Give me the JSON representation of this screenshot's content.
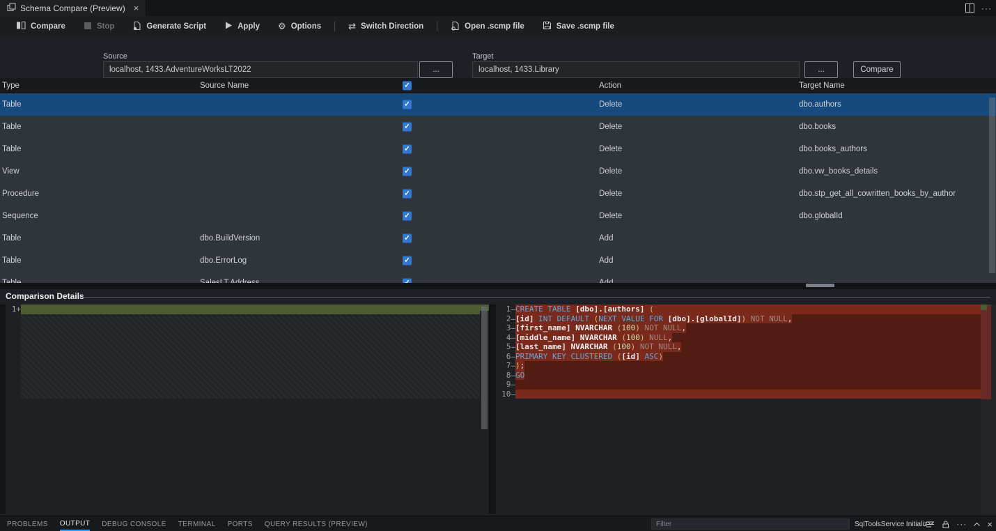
{
  "window": {
    "tab": {
      "title": "Schema Compare (Preview)",
      "close_icon": "×"
    },
    "more_icon": "···"
  },
  "toolbar": {
    "compare": "Compare",
    "stop": "Stop",
    "generate_script": "Generate Script",
    "apply": "Apply",
    "options": "Options",
    "switch_direction": "Switch Direction",
    "open_scmp": "Open .scmp file",
    "save_scmp": "Save .scmp file",
    "options_glyph": "⚙",
    "switch_glyph": "⇄"
  },
  "form": {
    "source_label": "Source",
    "source_value": "localhost, 1433.AdventureWorksLT2022",
    "target_label": "Target",
    "target_value": "localhost, 1433.Library",
    "browse_label": "...",
    "compare_button": "Compare"
  },
  "table": {
    "headers": {
      "type": "Type",
      "source_name": "Source Name",
      "action": "Action",
      "target_name": "Target Name"
    },
    "header_checkbox_checked": true,
    "check_glyph": "✓",
    "rows": [
      {
        "type": "Table",
        "source": "",
        "checked": true,
        "action": "Delete",
        "target": "dbo.authors",
        "selected": true
      },
      {
        "type": "Table",
        "source": "",
        "checked": true,
        "action": "Delete",
        "target": "dbo.books"
      },
      {
        "type": "Table",
        "source": "",
        "checked": true,
        "action": "Delete",
        "target": "dbo.books_authors"
      },
      {
        "type": "View",
        "source": "",
        "checked": true,
        "action": "Delete",
        "target": "dbo.vw_books_details"
      },
      {
        "type": "Procedure",
        "source": "",
        "checked": true,
        "action": "Delete",
        "target": "dbo.stp_get_all_cowritten_books_by_author"
      },
      {
        "type": "Sequence",
        "source": "",
        "checked": true,
        "action": "Delete",
        "target": "dbo.globalId"
      },
      {
        "type": "Table",
        "source": "dbo.BuildVersion",
        "checked": true,
        "action": "Add",
        "target": ""
      },
      {
        "type": "Table",
        "source": "dbo.ErrorLog",
        "checked": true,
        "action": "Add",
        "target": ""
      },
      {
        "type": "Table",
        "source": "SalesLT.Address",
        "checked": true,
        "action": "Add",
        "target": ""
      }
    ]
  },
  "details": {
    "title": "Comparison Details",
    "left": {
      "line_number": "1",
      "marker": "+"
    },
    "right": {
      "marker": "–",
      "lines": [
        {
          "n": "1",
          "full": true,
          "segs": [
            [
              "k",
              "CREATE TABLE "
            ],
            [
              "i",
              "[dbo].[authors] "
            ],
            [
              "p",
              "("
            ]
          ]
        },
        {
          "n": "2",
          "segs": [
            [
              "i",
              "[id] "
            ],
            [
              "k",
              "INT DEFAULT "
            ],
            [
              "p",
              "("
            ],
            [
              "k",
              "NEXT VALUE FOR "
            ],
            [
              "i",
              "[dbo].[globalId]"
            ],
            [
              "p",
              ")"
            ],
            [
              "d",
              " NOT NULL"
            ],
            [
              "w",
              ","
            ]
          ]
        },
        {
          "n": "3",
          "segs": [
            [
              "i",
              "[first_name] "
            ],
            [
              "t",
              "NVARCHAR "
            ],
            [
              "p",
              "("
            ],
            [
              "n",
              "100"
            ],
            [
              "p",
              ")"
            ],
            [
              "d",
              " NOT NULL"
            ],
            [
              "w",
              ","
            ]
          ]
        },
        {
          "n": "4",
          "segs": [
            [
              "i",
              "[middle_name] "
            ],
            [
              "t",
              "NVARCHAR "
            ],
            [
              "p",
              "("
            ],
            [
              "n",
              "100"
            ],
            [
              "p",
              ")"
            ],
            [
              "d",
              " NULL"
            ],
            [
              "w",
              ","
            ]
          ]
        },
        {
          "n": "5",
          "segs": [
            [
              "i",
              "[last_name] "
            ],
            [
              "t",
              "NVARCHAR "
            ],
            [
              "p",
              "("
            ],
            [
              "n",
              "100"
            ],
            [
              "p",
              ")"
            ],
            [
              "d",
              " NOT NULL"
            ],
            [
              "w",
              ","
            ]
          ]
        },
        {
          "n": "6",
          "segs": [
            [
              "k",
              "PRIMARY KEY CLUSTERED "
            ],
            [
              "p",
              "("
            ],
            [
              "i",
              "[id] "
            ],
            [
              "k",
              "ASC"
            ],
            [
              "p",
              ")"
            ]
          ]
        },
        {
          "n": "7",
          "segs": [
            [
              "p",
              ")"
            ],
            [
              "w",
              ";"
            ]
          ]
        },
        {
          "n": "8",
          "segs": [
            [
              "k",
              "GO"
            ]
          ]
        },
        {
          "n": "9",
          "segs": []
        },
        {
          "n": "10",
          "full": true,
          "segs": []
        }
      ]
    }
  },
  "panel": {
    "tabs": [
      "PROBLEMS",
      "OUTPUT",
      "DEBUG CONSOLE",
      "TERMINAL",
      "PORTS",
      "QUERY RESULTS (PREVIEW)"
    ],
    "active_tab": "OUTPUT",
    "filter_placeholder": "Filter",
    "channel_selector": "SqlToolsService Initializ",
    "more_icon": "···",
    "close_icon": "×"
  },
  "colors": {
    "accent": "#3f97e8",
    "row_selection": "#164a7d",
    "checkbox": "#3178d2",
    "diff_added": "#4e5c33",
    "diff_removed": "#531c13",
    "diff_removed_highlight": "#7a2a1c"
  }
}
